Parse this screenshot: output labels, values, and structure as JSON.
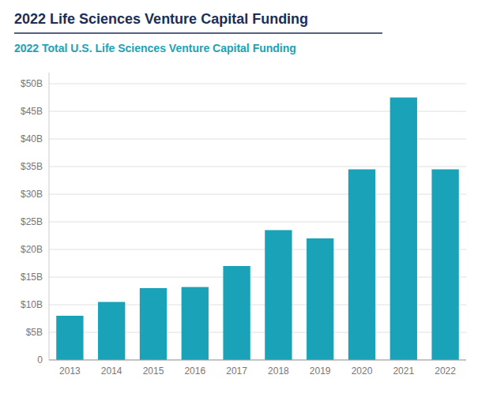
{
  "chart_data": {
    "type": "bar",
    "title": "2022 Life Sciences Venture Capital Funding",
    "subtitle": "2022 Total U.S. Life Sciences Venture Capital Funding",
    "categories": [
      "2013",
      "2014",
      "2015",
      "2016",
      "2017",
      "2018",
      "2019",
      "2020",
      "2021",
      "2022"
    ],
    "values": [
      8,
      10.5,
      13,
      13.2,
      17,
      23.5,
      22,
      34.5,
      47.5,
      34.5
    ],
    "color": "#1aa3b8",
    "ylim": [
      0,
      52
    ],
    "yticks": [
      0,
      {
        "value": 5,
        "label": "$5B"
      },
      {
        "value": 10,
        "label": "$10B"
      },
      {
        "value": 15,
        "label": "$15B"
      },
      {
        "value": 20,
        "label": "$20B"
      },
      {
        "value": 25,
        "label": "$25B"
      },
      {
        "value": 30,
        "label": "$30B"
      },
      {
        "value": 35,
        "label": "$35B"
      },
      {
        "value": 40,
        "label": "$40B"
      },
      {
        "value": 45,
        "label": "$45B"
      },
      {
        "value": 50,
        "label": "$50B"
      }
    ],
    "grid": true
  }
}
